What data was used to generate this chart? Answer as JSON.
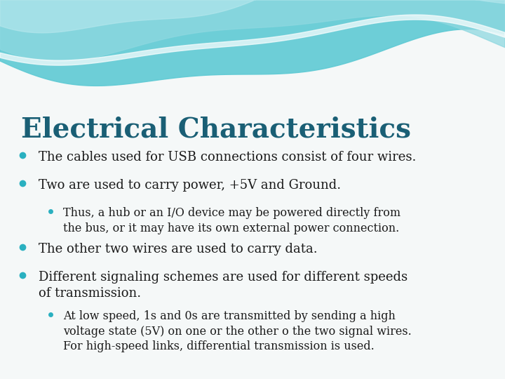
{
  "title": "Electrical Characteristics",
  "title_color": "#1a5f75",
  "title_fontsize": 28,
  "bg_color": "#f5f8f8",
  "bullet_color": "#2ab0c0",
  "text_color": "#1a1a1a",
  "bullet_main_size": 13,
  "bullet_sub_size": 11.5,
  "bullets": [
    {
      "level": 1,
      "text": "The cables used for USB connections consist of four wires."
    },
    {
      "level": 1,
      "text": "Two are used to carry power, +5V and Ground."
    },
    {
      "level": 2,
      "text": "Thus, a hub or an I/O device may be powered directly from\nthe bus, or it may have its own external power connection."
    },
    {
      "level": 1,
      "text": "The other two wires are used to carry data."
    },
    {
      "level": 1,
      "text": "Different signaling schemes are used for different speeds\nof transmission."
    },
    {
      "level": 2,
      "text": "At low speed, 1s and 0s are transmitted by sending a high\nvoltage state (5V) on one or the other o the two signal wires.\nFor high-speed links, differential transmission is used."
    }
  ],
  "wave_top_color": "#5ecad4",
  "wave_mid_color": "#8ed8e0",
  "wave_light_color": "#b8e8ee",
  "wave_white": "#e8f5f7"
}
